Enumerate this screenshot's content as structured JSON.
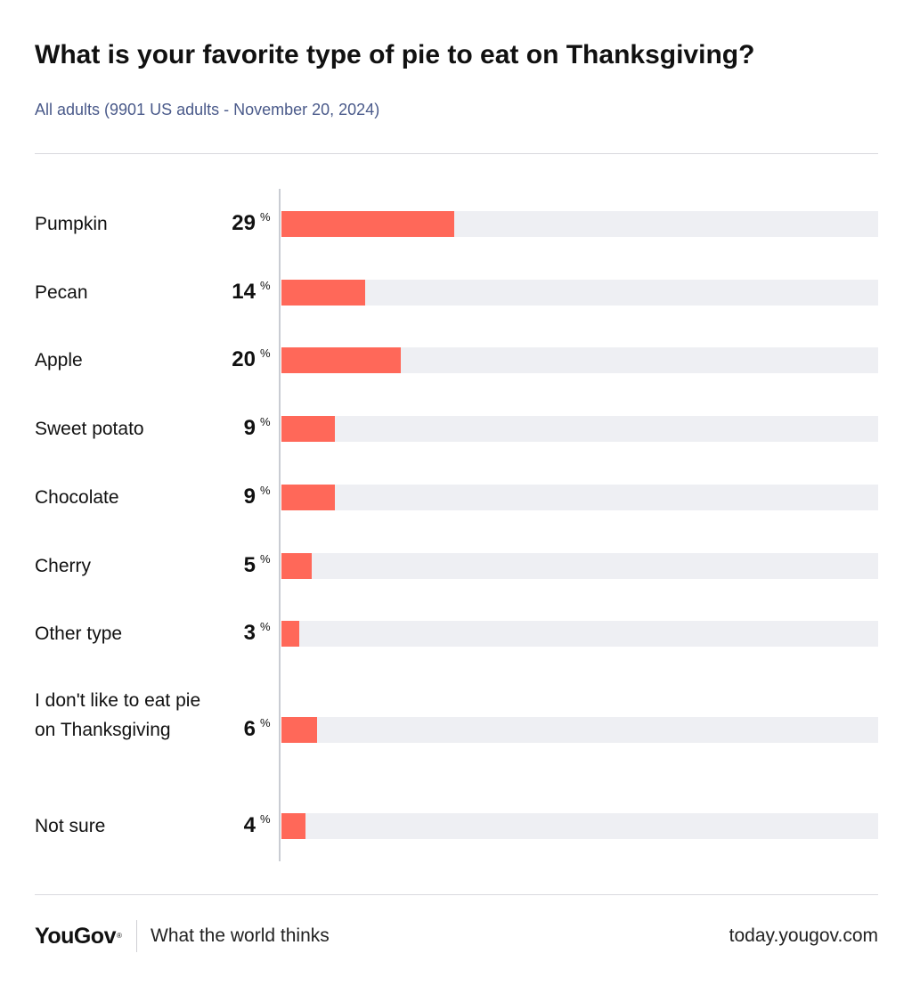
{
  "title": "What is your favorite type of pie to eat on Thanksgiving?",
  "subtitle": "All adults (9901 US adults - November 20, 2024)",
  "footer": {
    "brand": "YouGov",
    "brand_mark": "®",
    "tagline": "What the world thinks",
    "site": "today.yougov.com"
  },
  "colors": {
    "bar": "#ff6859",
    "track": "#eeeff3"
  },
  "chart_data": {
    "type": "bar",
    "orientation": "horizontal",
    "categories": [
      "Pumpkin",
      "Pecan",
      "Apple",
      "Sweet potato",
      "Chocolate",
      "Cherry",
      "Other type",
      "I don't like to eat pie on Thanksgiving",
      "Not sure"
    ],
    "values": [
      29,
      14,
      20,
      9,
      9,
      5,
      3,
      6,
      4
    ],
    "value_suffix": "%",
    "xlim": [
      0,
      100
    ],
    "grid": false
  }
}
